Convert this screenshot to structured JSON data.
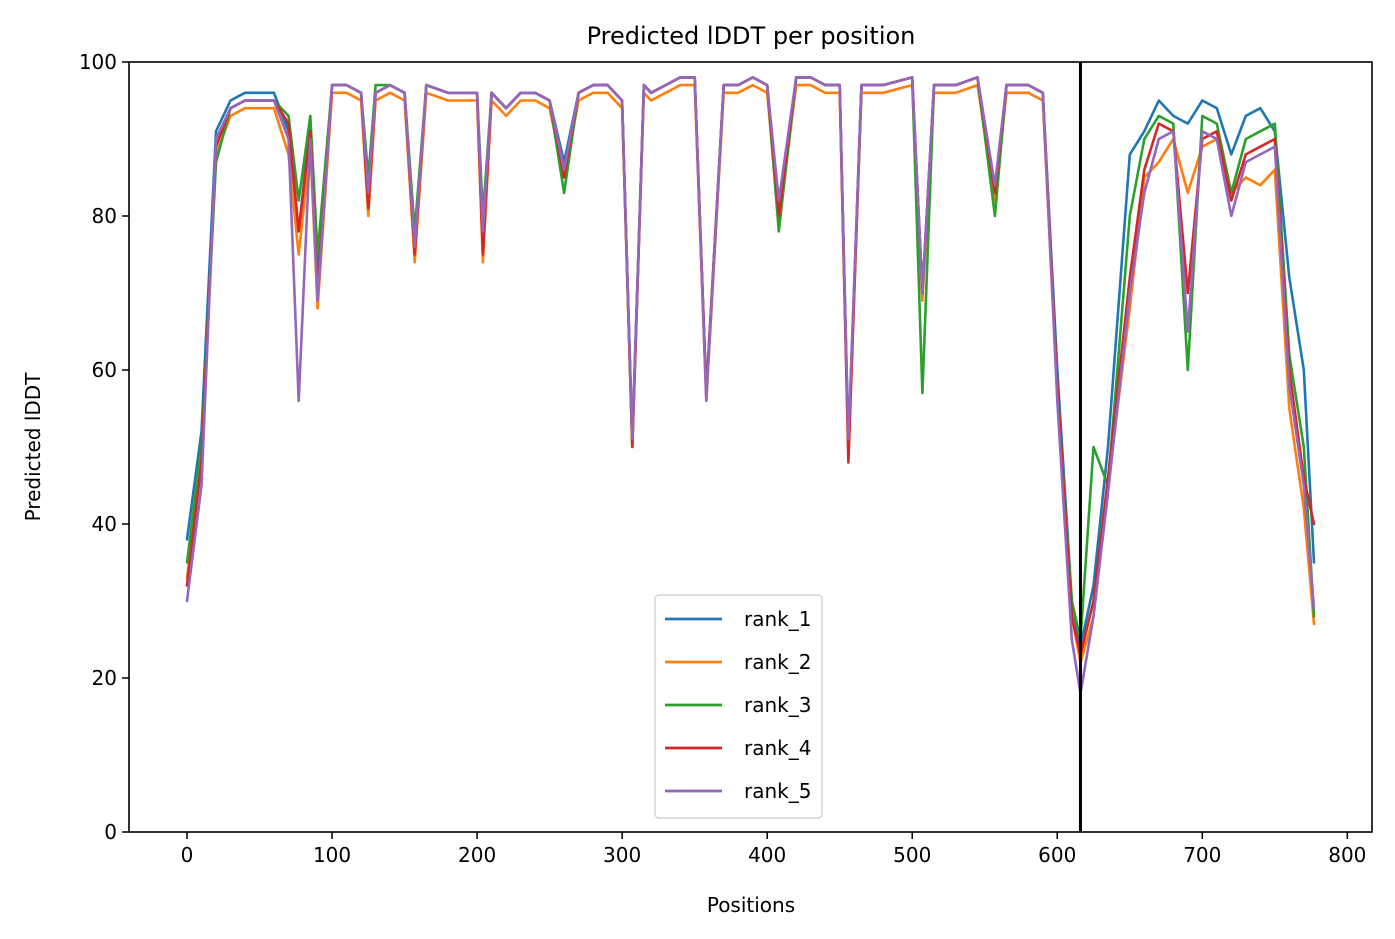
{
  "chart_data": {
    "type": "line",
    "title": "Predicted lDDT per position",
    "xlabel": "Positions",
    "ylabel": "Predicted lDDT",
    "xlim": [
      -40,
      817
    ],
    "ylim": [
      0,
      100
    ],
    "xticks": [
      0,
      100,
      200,
      300,
      400,
      500,
      600,
      700,
      800
    ],
    "yticks": [
      0,
      20,
      40,
      60,
      80,
      100
    ],
    "grid": false,
    "legend_position": "bottom-center",
    "vline_x": 616,
    "vline_color": "#000000",
    "x": [
      0,
      10,
      20,
      30,
      40,
      50,
      60,
      70,
      77,
      85,
      90,
      100,
      110,
      120,
      125,
      130,
      140,
      150,
      157,
      165,
      180,
      190,
      200,
      204,
      210,
      220,
      230,
      240,
      250,
      260,
      270,
      280,
      290,
      300,
      307,
      315,
      320,
      330,
      340,
      350,
      358,
      370,
      380,
      390,
      400,
      408,
      420,
      430,
      440,
      450,
      456,
      465,
      480,
      500,
      507,
      515,
      530,
      545,
      557,
      565,
      580,
      590,
      600,
      610,
      616,
      625,
      635,
      650,
      660,
      670,
      680,
      690,
      700,
      710,
      720,
      730,
      740,
      750,
      760,
      770,
      777
    ],
    "series": [
      {
        "name": "rank_1",
        "color": "#1f77b4",
        "values": [
          38,
          52,
          91,
          95,
          96,
          96,
          96,
          91,
          78,
          92,
          72,
          97,
          97,
          96,
          82,
          96,
          97,
          96,
          76,
          97,
          96,
          96,
          96,
          76,
          96,
          94,
          96,
          96,
          95,
          87,
          96,
          97,
          97,
          95,
          51,
          97,
          96,
          97,
          98,
          98,
          57,
          97,
          97,
          98,
          97,
          80,
          98,
          98,
          97,
          97,
          50,
          97,
          97,
          98,
          70,
          97,
          97,
          98,
          83,
          97,
          97,
          96,
          60,
          30,
          24,
          32,
          50,
          88,
          91,
          95,
          93,
          92,
          95,
          94,
          88,
          93,
          94,
          91,
          72,
          60,
          35
        ]
      },
      {
        "name": "rank_2",
        "color": "#ff7f0e",
        "values": [
          33,
          48,
          88,
          93,
          94,
          94,
          94,
          88,
          75,
          89,
          68,
          96,
          96,
          95,
          80,
          95,
          96,
          95,
          74,
          96,
          95,
          95,
          95,
          74,
          95,
          93,
          95,
          95,
          94,
          85,
          95,
          96,
          96,
          94,
          50,
          96,
          95,
          96,
          97,
          97,
          56,
          96,
          96,
          97,
          96,
          79,
          97,
          97,
          96,
          96,
          49,
          96,
          96,
          97,
          69,
          96,
          96,
          97,
          82,
          96,
          96,
          95,
          57,
          28,
          22,
          28,
          45,
          68,
          85,
          87,
          90,
          83,
          89,
          90,
          83,
          85,
          84,
          86,
          55,
          42,
          27
        ]
      },
      {
        "name": "rank_3",
        "color": "#2ca02c",
        "values": [
          35,
          50,
          87,
          94,
          95,
          95,
          95,
          93,
          82,
          93,
          75,
          97,
          97,
          96,
          85,
          97,
          97,
          96,
          78,
          97,
          96,
          96,
          96,
          80,
          96,
          94,
          96,
          96,
          95,
          83,
          96,
          97,
          97,
          95,
          50,
          97,
          96,
          97,
          98,
          98,
          57,
          97,
          97,
          98,
          97,
          78,
          98,
          98,
          97,
          97,
          50,
          97,
          97,
          98,
          57,
          97,
          97,
          98,
          80,
          97,
          97,
          96,
          58,
          30,
          25,
          50,
          45,
          80,
          90,
          93,
          92,
          60,
          93,
          92,
          83,
          90,
          91,
          92,
          62,
          50,
          28
        ]
      },
      {
        "name": "rank_4",
        "color": "#d62728",
        "values": [
          32,
          48,
          89,
          94,
          95,
          95,
          95,
          92,
          78,
          91,
          70,
          97,
          97,
          96,
          81,
          96,
          97,
          96,
          75,
          97,
          96,
          96,
          96,
          75,
          96,
          94,
          96,
          96,
          95,
          85,
          96,
          97,
          97,
          95,
          50,
          97,
          96,
          97,
          98,
          98,
          57,
          97,
          97,
          98,
          97,
          80,
          98,
          98,
          97,
          97,
          48,
          97,
          97,
          98,
          70,
          97,
          97,
          98,
          83,
          97,
          97,
          96,
          58,
          28,
          23,
          30,
          46,
          72,
          86,
          92,
          91,
          70,
          90,
          91,
          82,
          88,
          89,
          90,
          60,
          46,
          40
        ]
      },
      {
        "name": "rank_5",
        "color": "#9467bd",
        "values": [
          30,
          45,
          90,
          94,
          95,
          95,
          95,
          90,
          56,
          90,
          69,
          97,
          97,
          96,
          83,
          96,
          97,
          96,
          76,
          97,
          96,
          96,
          96,
          78,
          96,
          94,
          96,
          96,
          95,
          86,
          96,
          97,
          97,
          95,
          51,
          97,
          96,
          97,
          98,
          98,
          56,
          97,
          97,
          98,
          97,
          82,
          98,
          98,
          97,
          97,
          51,
          97,
          97,
          98,
          70,
          97,
          97,
          98,
          84,
          97,
          97,
          96,
          56,
          25,
          18,
          28,
          44,
          70,
          83,
          90,
          91,
          65,
          91,
          90,
          80,
          87,
          88,
          89,
          58,
          45,
          29
        ]
      }
    ]
  }
}
